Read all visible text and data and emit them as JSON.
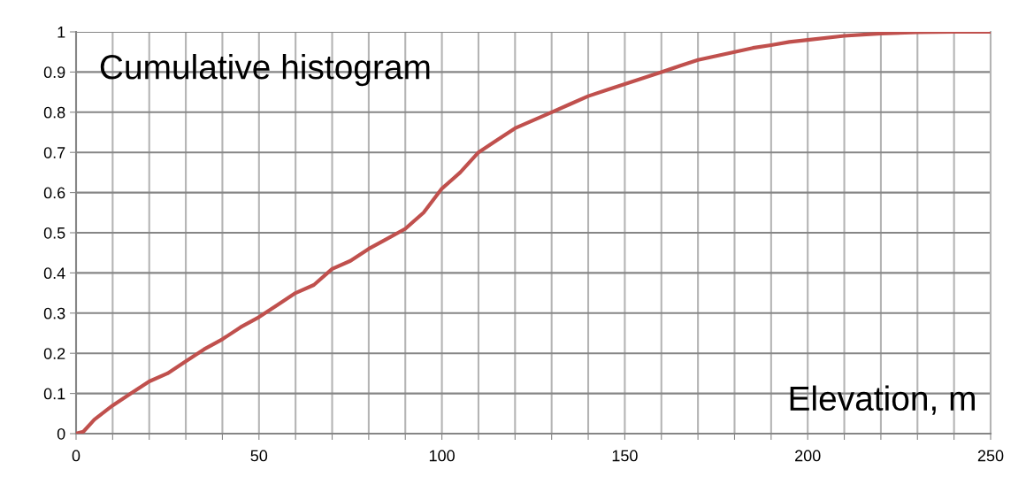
{
  "chart_data": {
    "type": "line",
    "title": "Cumulative histogram",
    "xlabel": "Elevation, m",
    "x": [
      0,
      2,
      5,
      10,
      15,
      20,
      25,
      30,
      35,
      40,
      45,
      50,
      55,
      60,
      65,
      70,
      75,
      80,
      85,
      90,
      95,
      100,
      105,
      110,
      115,
      120,
      125,
      130,
      135,
      140,
      145,
      150,
      155,
      160,
      165,
      170,
      175,
      180,
      185,
      190,
      195,
      200,
      210,
      220,
      230,
      240,
      250
    ],
    "series": [
      {
        "color": "#c0504d",
        "values": [
          0,
          0.005,
          0.035,
          0.07,
          0.1,
          0.13,
          0.15,
          0.18,
          0.21,
          0.235,
          0.265,
          0.29,
          0.32,
          0.35,
          0.37,
          0.41,
          0.43,
          0.46,
          0.485,
          0.51,
          0.55,
          0.61,
          0.65,
          0.7,
          0.73,
          0.76,
          0.78,
          0.8,
          0.82,
          0.84,
          0.855,
          0.87,
          0.885,
          0.9,
          0.915,
          0.93,
          0.94,
          0.95,
          0.96,
          0.967,
          0.975,
          0.98,
          0.99,
          0.996,
          0.999,
          1,
          1
        ]
      }
    ],
    "xlim": [
      0,
      250
    ],
    "ylim": [
      0,
      1
    ],
    "xticks": [
      0,
      {
        "value": 10,
        "label": null
      },
      {
        "value": 20,
        "label": null
      },
      {
        "value": 30,
        "label": null
      },
      {
        "value": 40,
        "label": null
      },
      50,
      {
        "value": 60,
        "label": null
      },
      {
        "value": 70,
        "label": null
      },
      {
        "value": 80,
        "label": null
      },
      {
        "value": 90,
        "label": null
      },
      100,
      {
        "value": 110,
        "label": null
      },
      {
        "value": 120,
        "label": null
      },
      {
        "value": 130,
        "label": null
      },
      {
        "value": 140,
        "label": null
      },
      150,
      {
        "value": 160,
        "label": null
      },
      {
        "value": 170,
        "label": null
      },
      {
        "value": 180,
        "label": null
      },
      {
        "value": 190,
        "label": null
      },
      200,
      {
        "value": 210,
        "label": null
      },
      {
        "value": 220,
        "label": null
      },
      {
        "value": 230,
        "label": null
      },
      {
        "value": 240,
        "label": null
      },
      250
    ],
    "yticks": [
      0,
      0.1,
      0.2,
      0.3,
      0.4,
      0.5,
      0.6,
      0.7,
      0.8,
      0.9,
      1
    ],
    "grid": true,
    "marker": "none",
    "line_style": "solid"
  }
}
